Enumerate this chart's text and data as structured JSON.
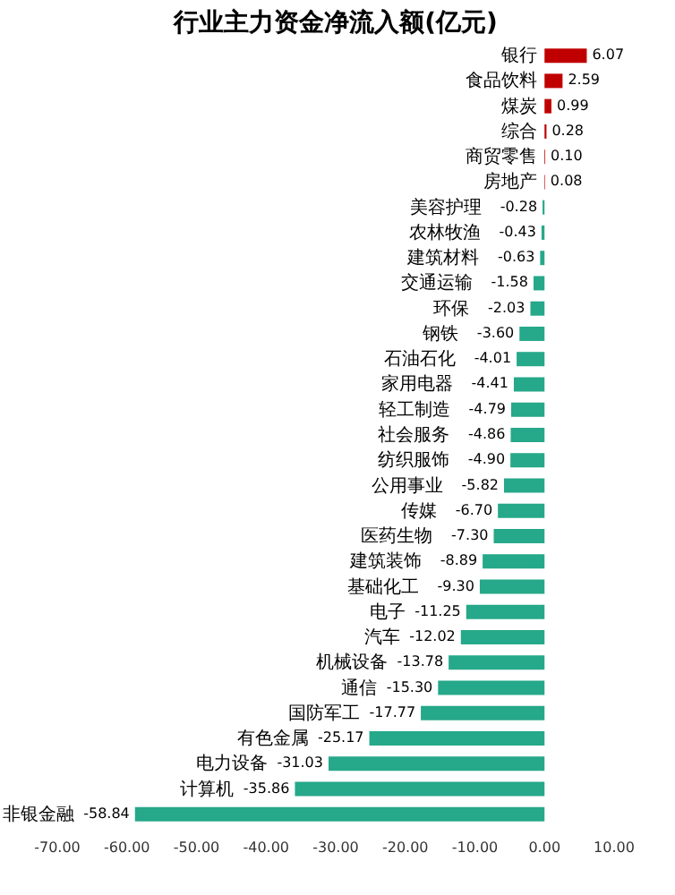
{
  "chart_data": {
    "type": "bar",
    "orientation": "horizontal",
    "title": "行业主力资金净流入额(亿元)",
    "categories": [
      "银行",
      "食品饮料",
      "煤炭",
      "综合",
      "商贸零售",
      "房地产",
      "美容护理",
      "农林牧渔",
      "建筑材料",
      "交通运输",
      "环保",
      "钢铁",
      "石油石化",
      "家用电器",
      "轻工制造",
      "社会服务",
      "纺织服饰",
      "公用事业",
      "传媒",
      "医药生物",
      "建筑装饰",
      "基础化工",
      "电子",
      "汽车",
      "机械设备",
      "通信",
      "国防军工",
      "有色金属",
      "电力设备",
      "计算机",
      "非银金融"
    ],
    "values": [
      6.07,
      2.59,
      0.99,
      0.28,
      0.1,
      0.08,
      -0.28,
      -0.43,
      -0.63,
      -1.58,
      -2.03,
      -3.6,
      -4.01,
      -4.41,
      -4.79,
      -4.86,
      -4.9,
      -5.82,
      -6.7,
      -7.3,
      -8.89,
      -9.3,
      -11.25,
      -12.02,
      -13.78,
      -15.3,
      -17.77,
      -25.17,
      -31.03,
      -35.86,
      -58.84
    ],
    "colors": [
      "#c00000",
      "#c00000",
      "#c00000",
      "#c00000",
      "#c00000",
      "#c00000",
      "#26a88a",
      "#26a88a",
      "#26a88a",
      "#26a88a",
      "#26a88a",
      "#26a88a",
      "#26a88a",
      "#26a88a",
      "#26a88a",
      "#26a88a",
      "#26a88a",
      "#26a88a",
      "#26a88a",
      "#26a88a",
      "#26a88a",
      "#26a88a",
      "#26a88a",
      "#26a88a",
      "#26a88a",
      "#26a88a",
      "#26a88a",
      "#26a88a",
      "#26a88a",
      "#26a88a",
      "#26a88a"
    ],
    "xlim": [
      -70,
      10
    ],
    "xticks": [
      {
        "value": -70,
        "label": "-70.00"
      },
      {
        "value": -60,
        "label": "-60.00"
      },
      {
        "value": -50,
        "label": "-50.00"
      },
      {
        "value": -40,
        "label": "-40.00"
      },
      {
        "value": -30,
        "label": "-30.00"
      },
      {
        "value": -20,
        "label": "-20.00"
      },
      {
        "value": -10,
        "label": "-10.00"
      },
      {
        "value": 0,
        "label": "0.00"
      },
      {
        "value": 10,
        "label": "10.00"
      }
    ],
    "value_labels": [
      "6.07",
      "2.59",
      "0.99",
      "0.28",
      "0.10",
      "0.08",
      "-0.28",
      "-0.43",
      "-0.63",
      "-1.58",
      "-2.03",
      "-3.60",
      "-4.01",
      "-4.41",
      "-4.79",
      "-4.86",
      "-4.90",
      "-5.82",
      "-6.70",
      "-7.30",
      "-8.89",
      "-9.30",
      "-11.25",
      "-12.02",
      "-13.78",
      "-15.30",
      "-17.77",
      "-25.17",
      "-31.03",
      "-35.86",
      "-58.84"
    ],
    "grid": false
  }
}
